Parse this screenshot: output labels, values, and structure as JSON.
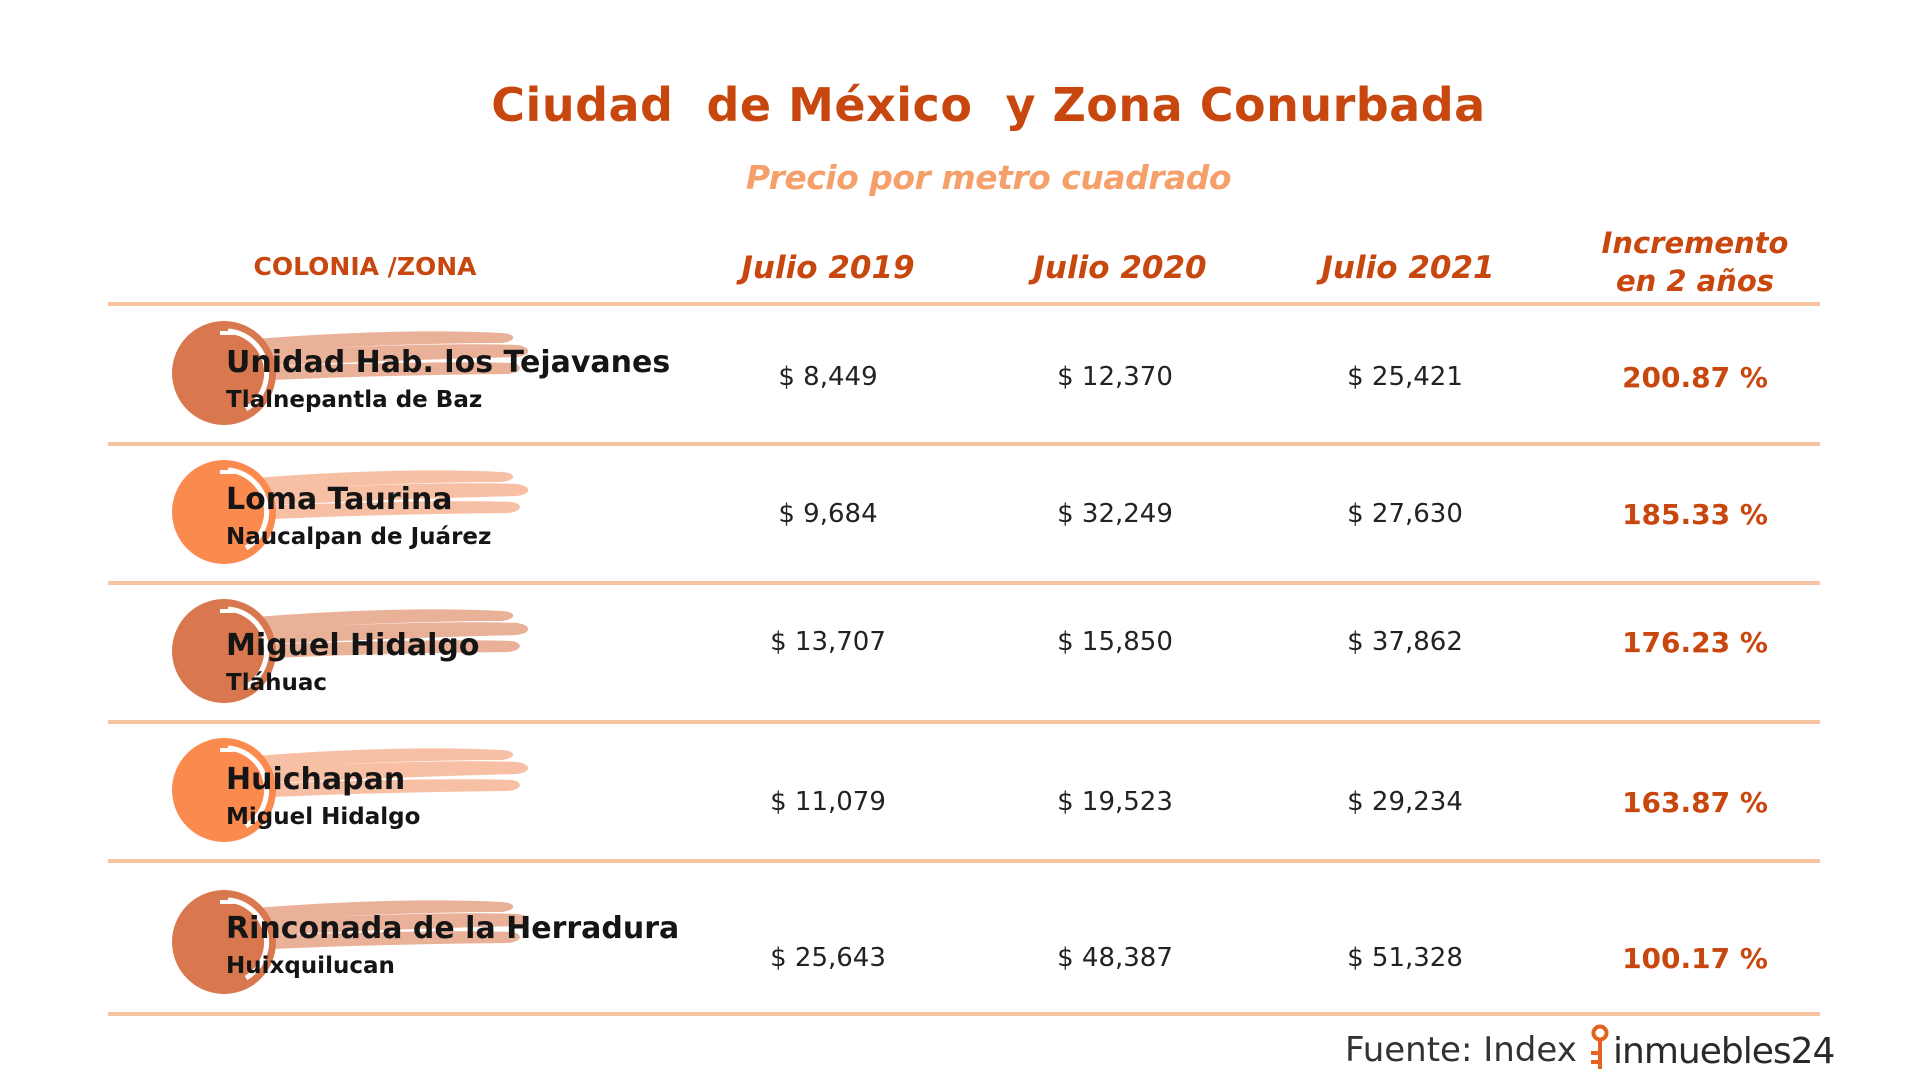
{
  "title": "Ciudad  de México  y Zona Conurbada",
  "subtitle": "Precio por metro cuadrado",
  "columns": {
    "zona": "COLONIA /ZONA",
    "y2019": "Julio 2019",
    "y2020": "Julio 2020",
    "y2021": "Julio 2021",
    "incremento_line1": "Incremento",
    "incremento_line2": "en 2 años"
  },
  "rows": [
    {
      "name": "Unidad Hab. los Tejavanes",
      "municipality": "Tlalnepantla de Baz",
      "y2019": "$ 8,449",
      "y2020": "$ 12,370",
      "y2021": "$ 25,421",
      "increase": "200.87 %"
    },
    {
      "name": "Loma Taurina",
      "municipality": "Naucalpan de Juárez",
      "y2019": "$ 9,684",
      "y2020": "$ 32,249",
      "y2021": "$ 27,630",
      "increase": "185.33 %"
    },
    {
      "name": "Miguel Hidalgo",
      "municipality": "Tláhuac",
      "y2019": "$ 13,707",
      "y2020": "$ 15,850",
      "y2021": "$ 37,862",
      "increase": "176.23 %"
    },
    {
      "name": "Huichapan",
      "municipality": "Miguel Hidalgo",
      "y2019": "$ 11,079",
      "y2020": "$ 19,523",
      "y2021": "$ 29,234",
      "increase": "163.87 %"
    },
    {
      "name": "Rinconada de la Herradura",
      "municipality": "Huixquilucan",
      "y2019": "$ 25,643",
      "y2020": "$ 48,387",
      "y2021": "$ 51,328",
      "increase": "100.17 %"
    }
  ],
  "source": {
    "label": "Fuente: Index",
    "brand": "inmuebles24"
  },
  "colors": {
    "primary": "#c8470e",
    "subtitle": "#f5a06a",
    "divider": "#f7c4a2",
    "badge_dark": "#d9784e",
    "badge_light": "#fb8a4f",
    "brush_dark": "#e8a98e",
    "brush_light": "#f6b89a"
  },
  "icons": {
    "row_badge": "brush-circle-icon",
    "logo": "key-icon"
  }
}
